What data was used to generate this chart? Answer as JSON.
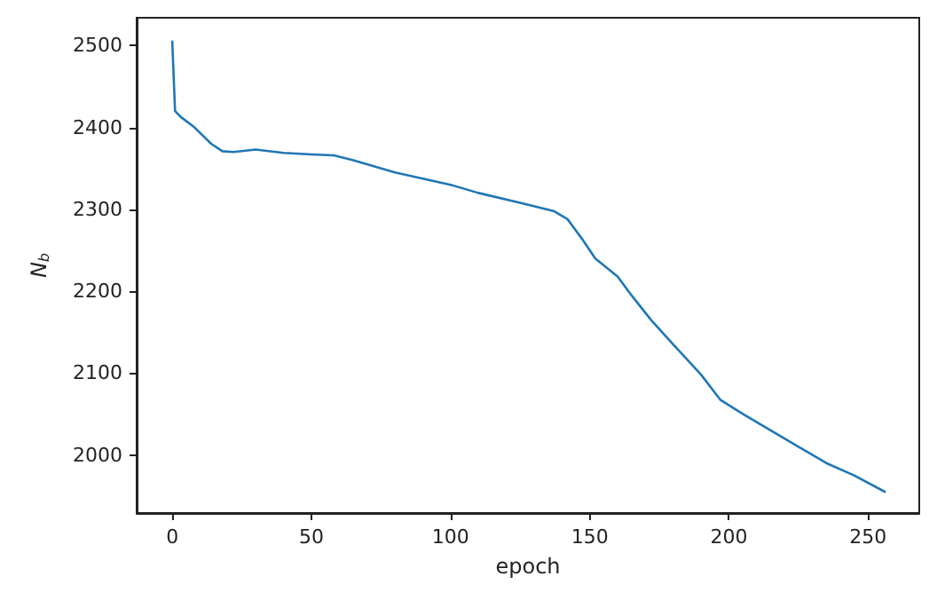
{
  "chart_data": {
    "type": "line",
    "xlabel": "epoch",
    "ylabel": "N$_{b}$",
    "xlim": [
      -12.8,
      268.4
    ],
    "ylim": [
      1929,
      2534
    ],
    "xticks": [
      0,
      50,
      100,
      150,
      200,
      250
    ],
    "yticks": [
      2000,
      2100,
      2200,
      2300,
      2400,
      2500
    ],
    "grid": false,
    "marker": "none",
    "line_style": "solid",
    "series": [
      {
        "color": "#1f77b4",
        "x": [
          0,
          1,
          3,
          8,
          14,
          18,
          22,
          30,
          40,
          50,
          58,
          65,
          80,
          100,
          110,
          125,
          137,
          142,
          147,
          152,
          160,
          165,
          172,
          180,
          190,
          197,
          205,
          215,
          225,
          235,
          245,
          256
        ],
        "values": [
          2505,
          2420,
          2413,
          2400,
          2380,
          2371,
          2370,
          2373,
          2369,
          2367,
          2366,
          2360,
          2345,
          2330,
          2320,
          2308,
          2298,
          2288,
          2265,
          2240,
          2218,
          2195,
          2165,
          2135,
          2098,
          2067,
          2050,
          2030,
          2010,
          1990,
          1975,
          1955
        ]
      }
    ]
  }
}
